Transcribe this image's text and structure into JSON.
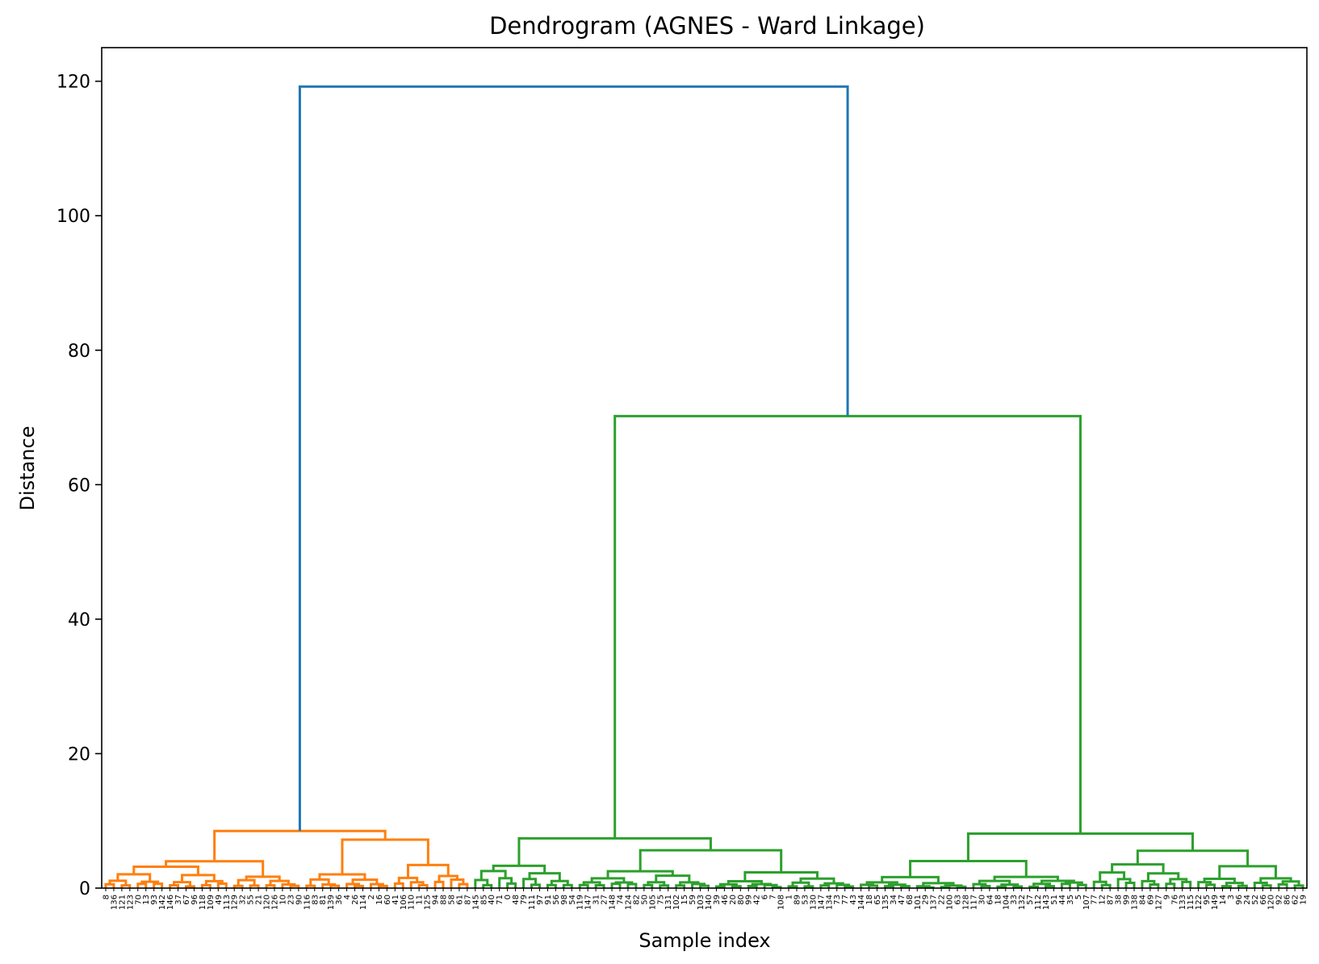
{
  "chart_data": {
    "type": "dendrogram",
    "title": "Dendrogram (AGNES - Ward Linkage)",
    "xlabel": "Sample index",
    "ylabel": "Distance",
    "ylim": [
      0,
      125
    ],
    "yticks": [
      0,
      20,
      40,
      60,
      80,
      100,
      120
    ],
    "leaf_count": 150,
    "colors": {
      "top_link": "#1f77b4",
      "cluster_1": "#ff7f0e",
      "cluster_2": "#2ca02c"
    },
    "leaves": [
      "8",
      "136",
      "121",
      "123",
      "70",
      "13",
      "93",
      "142",
      "146",
      "37",
      "67",
      "96",
      "118",
      "109",
      "49",
      "113",
      "129",
      "32",
      "55",
      "21",
      "120",
      "126",
      "10",
      "23",
      "90",
      "116",
      "83",
      "81",
      "139",
      "36",
      "4",
      "26",
      "114",
      "2",
      "16",
      "60",
      "41",
      "106",
      "110",
      "11",
      "125",
      "94",
      "88",
      "58",
      "61",
      "87",
      "145",
      "85",
      "40",
      "71",
      "0",
      "48",
      "79",
      "111",
      "97",
      "91",
      "56",
      "98",
      "54",
      "119",
      "147",
      "31",
      "27",
      "148",
      "74",
      "124",
      "82",
      "50",
      "105",
      "75",
      "131",
      "102",
      "15",
      "59",
      "103",
      "140",
      "39",
      "46",
      "20",
      "80",
      "99",
      "42",
      "6",
      "7",
      "108",
      "1",
      "89",
      "53",
      "130",
      "147",
      "134",
      "73",
      "77",
      "43",
      "144",
      "18",
      "65",
      "135",
      "34",
      "47",
      "68",
      "101",
      "29",
      "137",
      "22",
      "100",
      "63",
      "128",
      "117",
      "30",
      "64",
      "18",
      "104",
      "33",
      "132",
      "57",
      "112",
      "143",
      "51",
      "44",
      "35",
      "5",
      "107",
      "77",
      "12",
      "87",
      "38",
      "99",
      "138",
      "84",
      "69",
      "127",
      "9",
      "76",
      "133",
      "115",
      "122",
      "95",
      "149",
      "14",
      "3",
      "96",
      "24",
      "52",
      "66",
      "120",
      "92",
      "86",
      "62",
      "19"
    ],
    "merges": [
      {
        "cluster": "orange",
        "height": 8.5
      },
      {
        "cluster": "green",
        "height": 70.2
      },
      {
        "cluster": "green-left",
        "height": 7.4
      },
      {
        "cluster": "green-right",
        "height": 8.1
      },
      {
        "cluster": "root",
        "height": 119.2
      }
    ]
  }
}
